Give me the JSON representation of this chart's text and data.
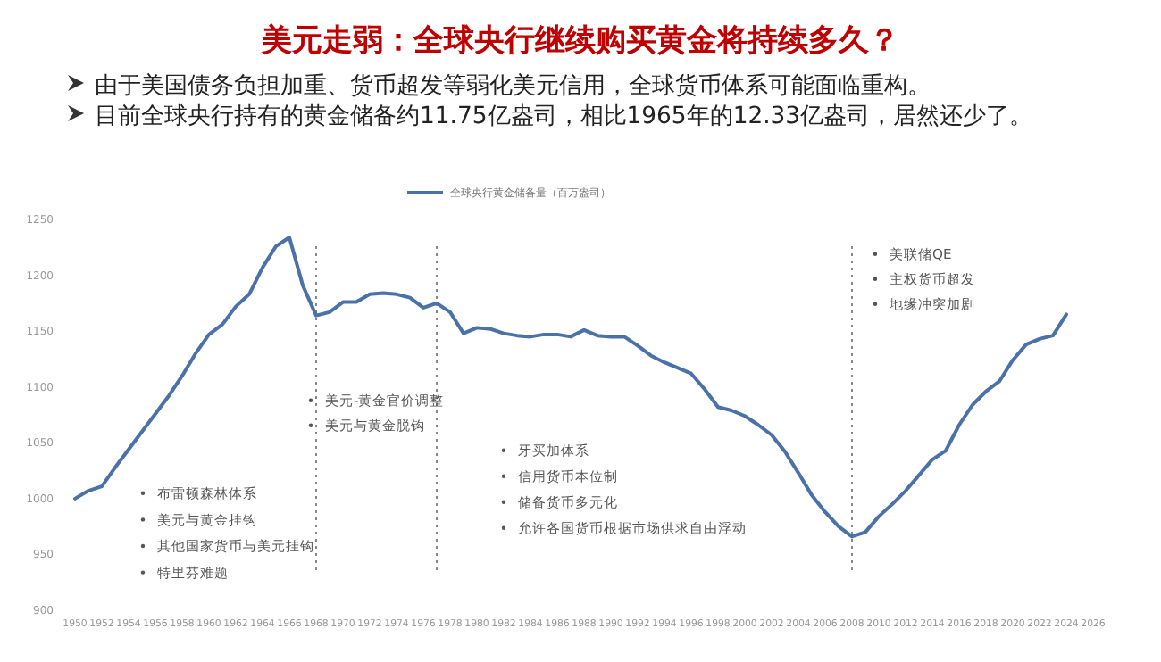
{
  "chart_data": {
    "type": "line",
    "title": "美元走弱：全球央行继续购买黄金将持续多久？",
    "subtitle": "由于美国债务负担加重、货币超发等弱化美元信用，全球货币体系可能面临重构。",
    "x": [
      1950,
      1951,
      1952,
      1953,
      1954,
      1955,
      1956,
      1957,
      1958,
      1959,
      1960,
      1961,
      1962,
      1963,
      1964,
      1965,
      1966,
      1967,
      1968,
      1969,
      1970,
      1971,
      1972,
      1973,
      1974,
      1975,
      1976,
      1977,
      1978,
      1979,
      1980,
      1981,
      1982,
      1983,
      1984,
      1985,
      1986,
      1987,
      1988,
      1989,
      1990,
      1991,
      1992,
      1993,
      1994,
      1995,
      1996,
      1997,
      1998,
      1999,
      2000,
      2001,
      2002,
      2003,
      2004,
      2005,
      2006,
      2007,
      2008,
      2009,
      2010,
      2011,
      2012,
      2013,
      2014,
      2015,
      2016,
      2017,
      2018,
      2019,
      2020,
      2021,
      2022,
      2023,
      2024
    ],
    "series": [
      {
        "name": "全球央行黄金储备量（百万盎司）",
        "color": "#4a72a8",
        "values": [
          1000,
          1007,
          1011,
          1028,
          1044,
          1060,
          1076,
          1092,
          1110,
          1130,
          1147,
          1156,
          1172,
          1183,
          1207,
          1226,
          1234,
          1191,
          1164,
          1167,
          1176,
          1176,
          1183,
          1184,
          1183,
          1180,
          1171,
          1175,
          1167,
          1148,
          1153,
          1152,
          1148,
          1146,
          1145,
          1147,
          1147,
          1145,
          1151,
          1146,
          1145,
          1145,
          1137,
          1128,
          1122,
          1117,
          1112,
          1098,
          1082,
          1079,
          1074,
          1066,
          1057,
          1042,
          1023,
          1003,
          988,
          975,
          966,
          970,
          984,
          995,
          1007,
          1021,
          1035,
          1043,
          1066,
          1084,
          1096,
          1105,
          1124,
          1138,
          1143,
          1146,
          1165
        ]
      }
    ],
    "xlim": [
      1950,
      2026
    ],
    "xticks": [
      1950,
      1952,
      1954,
      1956,
      1958,
      1960,
      1962,
      1964,
      1966,
      1968,
      1970,
      1972,
      1974,
      1976,
      1978,
      1980,
      1982,
      1984,
      1986,
      1988,
      1990,
      1992,
      1994,
      1996,
      1998,
      2000,
      2002,
      2004,
      2006,
      2008,
      2010,
      2012,
      2014,
      2016,
      2018,
      2020,
      2022,
      2024,
      2026
    ],
    "ylim": [
      900,
      1250
    ],
    "yticks": [
      900,
      950,
      1000,
      1050,
      1100,
      1150,
      1200,
      1250
    ],
    "grid": false,
    "legend": "top",
    "marker": "none",
    "line_style": "solid",
    "ref_lines": [
      {
        "axis": "x",
        "value": 1968,
        "color": "#888888",
        "line_style": "dotted"
      },
      {
        "axis": "x",
        "value": 1977,
        "color": "#888888",
        "line_style": "dotted"
      },
      {
        "axis": "x",
        "value": 2008,
        "color": "#888888",
        "line_style": "dotted"
      }
    ],
    "annotations": [
      "目前全球央行持有的黄金储备约11.75亿盎司，相比1965年的12.33亿盎司，居然还少了。",
      "布雷顿森林体系",
      "美元与黄金挂钩",
      "其他国家货币与美元挂钩",
      "特里芬难题",
      "美元-黄金官价调整",
      "美元与黄金脱钩",
      "牙买加体系",
      "信用货币本位制",
      "储备货币多元化",
      "允许各国货币根据市场供求自由浮动",
      "美联储QE",
      "主权货币超发",
      "地缘冲突加剧"
    ]
  }
}
